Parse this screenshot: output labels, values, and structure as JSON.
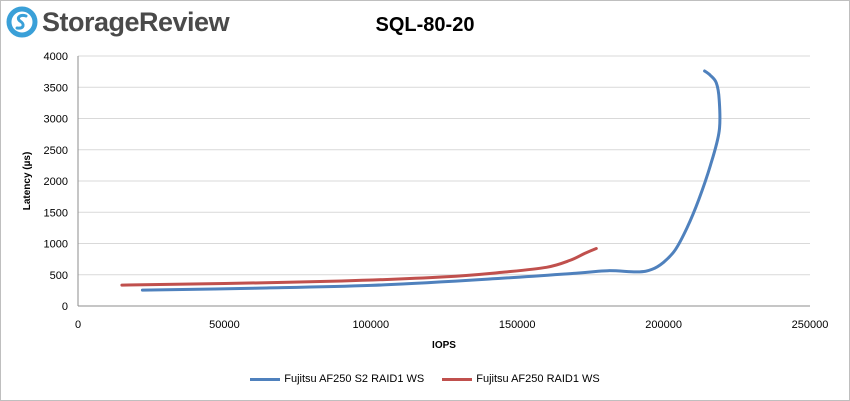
{
  "brand": {
    "name": "StorageReview",
    "accent": "#3aa0d8"
  },
  "chart_data": {
    "type": "line",
    "title": "SQL-80-20",
    "xlabel": "IOPS",
    "ylabel": "Latency (µs)",
    "xlim": [
      0,
      250000
    ],
    "ylim": [
      0,
      4000
    ],
    "xticks": [
      0,
      50000,
      100000,
      150000,
      200000,
      250000
    ],
    "yticks": [
      0,
      500,
      1000,
      1500,
      2000,
      2500,
      3000,
      3500,
      4000
    ],
    "grid": {
      "horizontal": true,
      "vertical": false
    },
    "legend_position": "bottom",
    "series": [
      {
        "name": "Fujitsu AF250 S2 RAID1 WS",
        "color": "#4f81bd",
        "points": [
          [
            22000,
            255
          ],
          [
            60000,
            285
          ],
          [
            100000,
            330
          ],
          [
            140000,
            430
          ],
          [
            170000,
            525
          ],
          [
            181000,
            565
          ],
          [
            191000,
            545
          ],
          [
            196000,
            585
          ],
          [
            200000,
            700
          ],
          [
            204000,
            900
          ],
          [
            208000,
            1250
          ],
          [
            212000,
            1700
          ],
          [
            216000,
            2250
          ],
          [
            219000,
            2800
          ],
          [
            219000,
            3300
          ],
          [
            218000,
            3570
          ],
          [
            216000,
            3690
          ],
          [
            214000,
            3760
          ]
        ]
      },
      {
        "name": "Fujitsu AF250 RAID1 WS",
        "color": "#c0504d",
        "points": [
          [
            15000,
            335
          ],
          [
            50000,
            360
          ],
          [
            90000,
            400
          ],
          [
            125000,
            465
          ],
          [
            145000,
            540
          ],
          [
            160000,
            620
          ],
          [
            168000,
            730
          ],
          [
            173000,
            840
          ],
          [
            177000,
            920
          ]
        ]
      }
    ]
  }
}
